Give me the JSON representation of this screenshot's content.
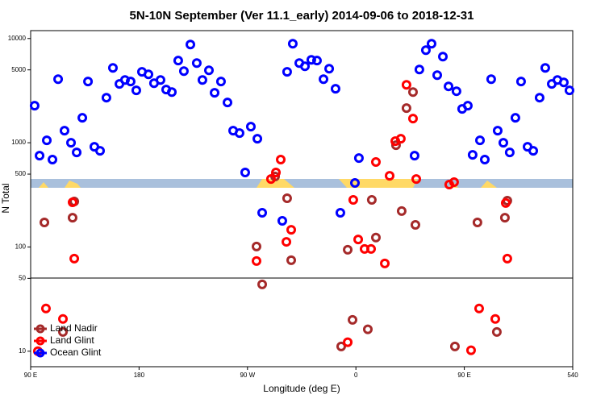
{
  "chart_data": {
    "type": "scatter",
    "title": "5N-10N September (Ver 11.1_early)   2014-09-06 to 2018-12-31",
    "x_label": "Longitude (deg E)",
    "y_label": "N Total",
    "xlim": [
      90,
      540
    ],
    "ylim": [
      7.1,
      11900
    ],
    "log_y": true,
    "legend": "lower left",
    "xticks": [
      {
        "value": 90,
        "label": "90 E"
      },
      180,
      {
        "value": 270,
        "label": "90 W"
      },
      {
        "value": 360,
        "label": "0"
      },
      {
        "value": 450,
        "label": "90 E"
      },
      540
    ],
    "yticks": [
      10,
      50,
      100,
      500,
      1000,
      5000,
      10000
    ],
    "series": [
      {
        "name": "Land Nadir",
        "color": "#a52a2a",
        "x": [
          101.4,
          124.8,
          126.2,
          116.8,
          277.5,
          282.2,
          292.9,
          302.9,
          306.3,
          347.8,
          357.2,
          369.9,
          373.2,
          376.6,
          353.2,
          398.0,
          402.0,
          409.4,
          393.3,
          407.4,
          442.2,
          460.9,
          477.0,
          483.7,
          485.7
        ],
        "values": [
          172,
          191,
          273,
          15.3,
          101,
          43.7,
          474,
          293,
          74.6,
          11.1,
          20,
          16.2,
          283,
          123,
          94,
          221,
          2148,
          163,
          948,
          3062,
          11.1,
          172,
          15.3,
          191,
          278
        ]
      },
      {
        "name": "Land Glint",
        "color": "#ff0000",
        "x": [
          102.7,
          116.8,
          126.2,
          124.8,
          96.0,
          277.5,
          289.5,
          293.6,
          297.6,
          302.3,
          306.3,
          357.8,
          353.2,
          361.9,
          367.2,
          372.6,
          376.6,
          384.0,
          388.0,
          392.7,
          397.3,
          402.0,
          407.4,
          410.1,
          437.5,
          441.5,
          455.6,
          462.3,
          475.7,
          485.7,
          484.4
        ],
        "values": [
          25.7,
          20.4,
          77.3,
          268,
          10,
          73.3,
          449,
          518,
          689,
          112,
          146,
          283,
          12.2,
          118,
          95.7,
          95.7,
          653,
          69.5,
          482,
          1036,
          1093,
          3597,
          1706,
          449,
          397,
          419,
          10.2,
          25.7,
          20.4,
          77.3,
          264
        ]
      },
      {
        "name": "Ocean Glint",
        "color": "#0000ff",
        "x": [
          93.3,
          97.4,
          103.4,
          108.1,
          112.8,
          118.1,
          123.5,
          128.2,
          132.9,
          137.6,
          142.9,
          147.6,
          152.9,
          158.3,
          163.7,
          168.3,
          173.0,
          177.7,
          182.4,
          187.8,
          192.4,
          197.8,
          202.5,
          207.2,
          212.5,
          217.2,
          222.6,
          227.9,
          232.6,
          238.0,
          242.7,
          248.0,
          253.4,
          258.1,
          263.4,
          268.1,
          272.8,
          278.2,
          282.2,
          298.9,
          302.9,
          307.6,
          313.0,
          317.7,
          323.0,
          327.7,
          333.1,
          337.8,
          343.1,
          347.1,
          359.2,
          362.5,
          408.7,
          412.7,
          418.1,
          422.8,
          427.5,
          432.2,
          436.9,
          443.5,
          448.2,
          452.9,
          456.9,
          463.0,
          467.0,
          472.3,
          477.7,
          482.4,
          487.7,
          492.4,
          497.1,
          502.5,
          507.2,
          512.5,
          517.2,
          522.6,
          527.3,
          532.6,
          537.3
        ],
        "values": [
          2265,
          752,
          1055,
          689,
          4074,
          1306,
          1000,
          808,
          1734,
          3864,
          915,
          837,
          2706,
          5224,
          3664,
          4000,
          3864,
          3177,
          4786,
          4530,
          3724,
          4000,
          3236,
          3062,
          6138,
          4864,
          8750,
          5808,
          4000,
          4955,
          3013,
          3864,
          2432,
          1306,
          1238,
          518,
          1427,
          1093,
          213,
          178,
          4786,
          8913,
          5808,
          5417,
          6237,
          6138,
          4074,
          5130,
          3292,
          213,
          411,
          713,
          752,
          5040,
          7730,
          8913,
          4452,
          6700,
          3472,
          3120,
          2110,
          2265,
          766,
          1055,
          689,
          4074,
          1306,
          1000,
          808,
          1734,
          3864,
          915,
          837,
          2706,
          5224,
          3664,
          4000,
          3793,
          3177
        ]
      }
    ]
  }
}
